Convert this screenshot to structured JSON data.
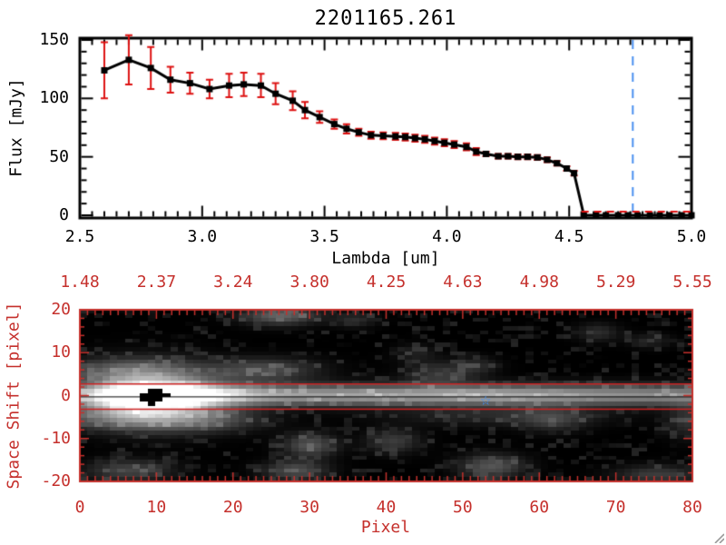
{
  "chart_data": [
    {
      "type": "line",
      "title": "2201165.261",
      "xlabel": "Lambda [um]",
      "ylabel": "Flux [mJy]",
      "xlim": [
        2.5,
        5.0
      ],
      "ylim": [
        0,
        150
      ],
      "xticks": [
        2.5,
        3.0,
        3.5,
        4.0,
        4.5,
        5.0
      ],
      "xtick_labels": [
        "2.5",
        "3.0",
        "3.5",
        "4.0",
        "4.5",
        "5.0"
      ],
      "yticks": [
        0,
        50,
        100,
        150
      ],
      "ytick_labels": [
        "0",
        "50",
        "100",
        "150"
      ],
      "grid": false,
      "marker": "filled-square",
      "line_color": "#000000",
      "error_bar_color": "#dd1111",
      "series": [
        {
          "name": "spectrum",
          "points_format": [
            "lambda_um",
            "flux_mJy",
            "flux_err_mJy"
          ],
          "points": [
            [
              2.6,
              124,
              24
            ],
            [
              2.7,
              133,
              21
            ],
            [
              2.79,
              126,
              18
            ],
            [
              2.87,
              116,
              11
            ],
            [
              2.95,
              113,
              9
            ],
            [
              3.03,
              108,
              8
            ],
            [
              3.11,
              111,
              10
            ],
            [
              3.17,
              112,
              10
            ],
            [
              3.24,
              111,
              10
            ],
            [
              3.3,
              104,
              9
            ],
            [
              3.37,
              98,
              8
            ],
            [
              3.42,
              90,
              7
            ],
            [
              3.48,
              84,
              5
            ],
            [
              3.54,
              78,
              4
            ],
            [
              3.59,
              74,
              4
            ],
            [
              3.64,
              71,
              3
            ],
            [
              3.69,
              68.5,
              3
            ],
            [
              3.74,
              68,
              3
            ],
            [
              3.79,
              67.5,
              3
            ],
            [
              3.83,
              67,
              3
            ],
            [
              3.87,
              66,
              3
            ],
            [
              3.91,
              65,
              3
            ],
            [
              3.95,
              63.5,
              3
            ],
            [
              3.99,
              62,
              3
            ],
            [
              4.03,
              60.5,
              3
            ],
            [
              4.08,
              58.5,
              3
            ],
            [
              4.12,
              54.5,
              3
            ],
            [
              4.16,
              52.5,
              2
            ],
            [
              4.21,
              50.5,
              2
            ],
            [
              4.25,
              50.5,
              2
            ],
            [
              4.29,
              50,
              2
            ],
            [
              4.33,
              50,
              2
            ],
            [
              4.37,
              49.5,
              2
            ],
            [
              4.41,
              47.5,
              2
            ],
            [
              4.45,
              44.5,
              2
            ],
            [
              4.49,
              40,
              2
            ],
            [
              4.52,
              36,
              2
            ],
            [
              4.56,
              0,
              0
            ],
            [
              4.61,
              0,
              0
            ],
            [
              4.65,
              0,
              0
            ],
            [
              4.7,
              0,
              0
            ],
            [
              4.74,
              0,
              0
            ],
            [
              4.78,
              0,
              0
            ],
            [
              4.83,
              0,
              0
            ],
            [
              4.87,
              0,
              0
            ],
            [
              4.91,
              0,
              0
            ],
            [
              4.96,
              0,
              0
            ],
            [
              5.0,
              0,
              0
            ]
          ]
        }
      ],
      "zero_line": {
        "y": 0,
        "x_start": 4.55,
        "x_end": 5.0,
        "color": "#dd1111",
        "style": "dashed"
      },
      "vline": {
        "x": 4.76,
        "color": "#4b90f0",
        "style": "dashed"
      }
    },
    {
      "type": "heatmap",
      "xlabel": "Pixel",
      "ylabel": "Space Shift [pixel]",
      "xlim": [
        0,
        80
      ],
      "ylim": [
        -20,
        20
      ],
      "xticks": [
        0,
        10,
        20,
        30,
        40,
        50,
        60,
        70,
        80
      ],
      "xtick_labels": [
        "0",
        "10",
        "20",
        "30",
        "40",
        "50",
        "60",
        "70",
        "80"
      ],
      "yticks": [
        20,
        10,
        0,
        -10,
        -20
      ],
      "ytick_labels": [
        "20",
        "10",
        "0",
        "-10",
        "-20"
      ],
      "top_axis_labels": [
        "1.48",
        "2.37",
        "3.24",
        "3.80",
        "4.25",
        "4.63",
        "4.98",
        "5.29",
        "5.55"
      ],
      "axis_color": "#c5302c",
      "colormap": "grayscale",
      "aperture_lines": {
        "y_upper": 2.7,
        "y_lower": -3.2,
        "color": "#cc2222"
      },
      "center_line": {
        "y": -0.3,
        "color": "#000000"
      },
      "star_marker": {
        "x": 53,
        "y": -1,
        "color": "#3d8ef5",
        "glyph": "☆"
      },
      "trace": {
        "y_center": 0,
        "sigma_y": 1.7,
        "profile_x_amp": [
          [
            0,
            120
          ],
          [
            3,
            165
          ],
          [
            6,
            235
          ],
          [
            9,
            255
          ],
          [
            13,
            250
          ],
          [
            16,
            220
          ],
          [
            20,
            190
          ],
          [
            24,
            172
          ],
          [
            28,
            162
          ],
          [
            33,
            162
          ],
          [
            38,
            168
          ],
          [
            43,
            165
          ],
          [
            48,
            170
          ],
          [
            53,
            178
          ],
          [
            58,
            170
          ],
          [
            63,
            160
          ],
          [
            68,
            150
          ],
          [
            73,
            145
          ],
          [
            80,
            138
          ]
        ]
      },
      "masked_black_cells": [
        [
          9,
          1
        ],
        [
          10,
          1
        ],
        [
          8,
          0
        ],
        [
          9,
          0
        ],
        [
          10,
          0
        ],
        [
          11,
          0
        ],
        [
          8,
          -1
        ],
        [
          9,
          -1
        ],
        [
          10,
          -1
        ],
        [
          9,
          -2
        ]
      ],
      "blobs_x_y_sx_sy_amp": [
        [
          9,
          0,
          6,
          4.5,
          210
        ],
        [
          5,
          6,
          6,
          2,
          55
        ],
        [
          24,
          6,
          5,
          2,
          75
        ],
        [
          26,
          19,
          3.5,
          1.6,
          100
        ],
        [
          36,
          18,
          2,
          1.2,
          45
        ],
        [
          47,
          5,
          3,
          2,
          55
        ],
        [
          52,
          7,
          2,
          1.5,
          40
        ],
        [
          44,
          10,
          2,
          1.5,
          30
        ],
        [
          68,
          15,
          2,
          1.5,
          45
        ],
        [
          75,
          13,
          2,
          1.2,
          35
        ],
        [
          6,
          -5,
          7,
          2.2,
          85
        ],
        [
          17,
          -6,
          5,
          2,
          55
        ],
        [
          30,
          -12,
          2.5,
          2,
          85
        ],
        [
          28,
          -18,
          3,
          1.6,
          80
        ],
        [
          41,
          -11,
          2.5,
          2,
          60
        ],
        [
          54,
          -17,
          3,
          2,
          85
        ],
        [
          55,
          -5,
          10,
          1.6,
          40
        ],
        [
          62,
          -6,
          3,
          2,
          50
        ],
        [
          76,
          -19,
          4,
          1.6,
          60
        ],
        [
          80,
          -6,
          2,
          3,
          50
        ],
        [
          6,
          -18,
          4,
          1.8,
          70
        ]
      ]
    }
  ]
}
